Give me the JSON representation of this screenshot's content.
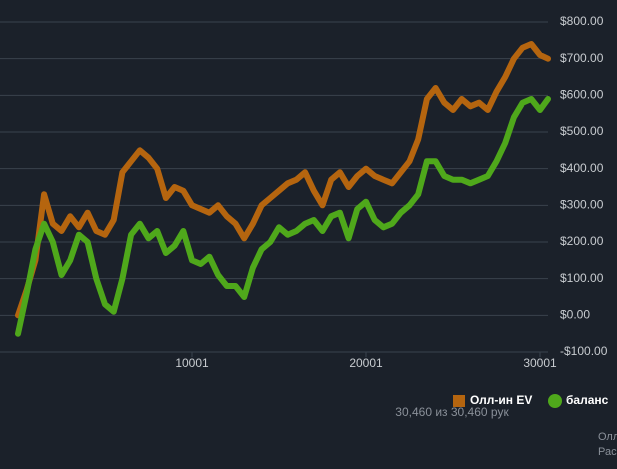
{
  "chart_data": {
    "type": "line",
    "x": [
      1,
      500,
      1000,
      1500,
      2000,
      2500,
      3000,
      3500,
      4000,
      4500,
      5000,
      5500,
      6000,
      6500,
      7000,
      7500,
      8000,
      8500,
      9000,
      9500,
      10000,
      10500,
      11000,
      11500,
      12000,
      12500,
      13000,
      13500,
      14000,
      14500,
      15000,
      15500,
      16000,
      16500,
      17000,
      17500,
      18000,
      18500,
      19000,
      19500,
      20000,
      20500,
      21000,
      21500,
      22000,
      22500,
      23000,
      23500,
      24000,
      24500,
      25000,
      25500,
      26000,
      26500,
      27000,
      27500,
      28000,
      28500,
      29000,
      29500,
      30000,
      30460
    ],
    "series": [
      {
        "name": "Олл-ин EV",
        "color": "#b5650f",
        "values": [
          0,
          70,
          150,
          330,
          250,
          230,
          270,
          240,
          280,
          230,
          220,
          260,
          390,
          420,
          450,
          430,
          400,
          320,
          350,
          340,
          300,
          290,
          280,
          300,
          270,
          250,
          210,
          250,
          300,
          320,
          340,
          360,
          370,
          390,
          340,
          300,
          370,
          390,
          350,
          380,
          400,
          380,
          370,
          360,
          390,
          420,
          480,
          590,
          620,
          580,
          560,
          590,
          570,
          580,
          560,
          610,
          650,
          700,
          730,
          740,
          710,
          700
        ]
      },
      {
        "name": "баланс",
        "color": "#4fa81b",
        "values": [
          -50,
          60,
          180,
          250,
          200,
          110,
          150,
          220,
          200,
          100,
          30,
          10,
          100,
          220,
          250,
          210,
          230,
          170,
          190,
          230,
          150,
          140,
          160,
          110,
          80,
          80,
          50,
          130,
          180,
          200,
          240,
          220,
          230,
          250,
          260,
          230,
          270,
          280,
          210,
          290,
          310,
          260,
          240,
          250,
          280,
          300,
          330,
          420,
          420,
          380,
          370,
          370,
          360,
          370,
          380,
          420,
          470,
          540,
          580,
          590,
          560,
          590
        ]
      }
    ],
    "xlim": [
      1,
      30460
    ],
    "xticks": [
      10001,
      20001,
      30001
    ],
    "ylim": [
      -100,
      800
    ],
    "yticks": [
      {
        "value": -100,
        "label": "-$100.00"
      },
      {
        "value": 0,
        "label": "$0.00"
      },
      {
        "value": 100,
        "label": "$100.00"
      },
      {
        "value": 200,
        "label": "$200.00"
      },
      {
        "value": 300,
        "label": "$300.00"
      },
      {
        "value": 400,
        "label": "$400.00"
      },
      {
        "value": 500,
        "label": "$500.00"
      },
      {
        "value": 600,
        "label": "$600.00"
      },
      {
        "value": 700,
        "label": "$700.00"
      },
      {
        "value": 800,
        "label": "$800.00"
      }
    ],
    "grid": true,
    "subtitle": "30,460 из 30,460 рук",
    "footer": [
      "Олл",
      "Рас"
    ]
  }
}
